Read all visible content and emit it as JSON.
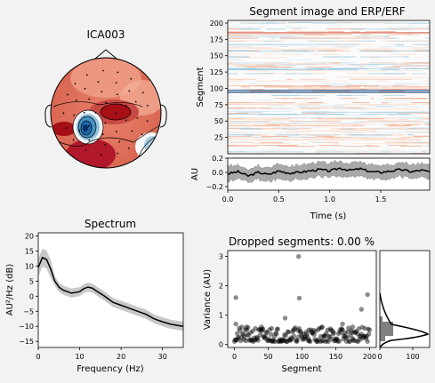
{
  "topomap": {
    "title": "ICA003",
    "colors": {
      "head": "#000000",
      "hot_dark": "#a50f15",
      "hot": "#d6604d",
      "neutral": "#f7f7f7",
      "cold": "#4393c3",
      "cold_dark": "#053061"
    }
  },
  "segment_image": {
    "title": "Segment image and ERP/ERF",
    "ylabel": "Segment",
    "yticks": [
      "200",
      "175",
      "150",
      "125",
      "100",
      "75",
      "50",
      "25"
    ]
  },
  "erp": {
    "ylabel": "AU",
    "xlabel": "Time (s)",
    "yticks": [
      "0.2",
      "0.0",
      "−0.2"
    ],
    "xticks": [
      "0.0",
      "0.5",
      "1.0",
      "1.5"
    ]
  },
  "spectrum": {
    "title": "Spectrum",
    "xlabel": "Frequency (Hz)",
    "ylabel": "AU²/Hz (dB)",
    "xticks": [
      "0",
      "10",
      "20",
      "30"
    ],
    "yticks": [
      "20",
      "15",
      "10",
      "5",
      "0",
      "−5",
      "−10",
      "−15"
    ]
  },
  "dropped": {
    "title": "Dropped segments: 0.00 %",
    "xlabel": "Segment",
    "ylabel": "Variance (AU)",
    "xticks": [
      "0",
      "50",
      "100",
      "150",
      "200"
    ],
    "yticks": [
      "3",
      "2",
      "1",
      "0"
    ],
    "hist_xticks": [
      "0",
      "100"
    ]
  },
  "chart_data": [
    {
      "type": "heatmap",
      "title": "Segment image and ERP/ERF",
      "ylabel": "Segment",
      "xlim": [
        0,
        1.98
      ],
      "ylim": [
        0,
        204
      ],
      "highlighted_rows": [
        95,
        98,
        186
      ]
    },
    {
      "type": "line",
      "xlabel": "Time (s)",
      "ylabel": "AU",
      "xlim": [
        0,
        1.98
      ],
      "ylim": [
        -0.25,
        0.2
      ],
      "x": [
        0.0,
        0.1,
        0.2,
        0.3,
        0.4,
        0.5,
        0.6,
        0.7,
        0.8,
        0.9,
        1.0,
        1.1,
        1.2,
        1.3,
        1.4,
        1.5,
        1.6,
        1.7,
        1.8,
        1.9,
        1.98
      ],
      "series": [
        {
          "values": [
            -0.02,
            0.01,
            -0.05,
            0.0,
            -0.03,
            0.02,
            -0.01,
            0.0,
            0.02,
            0.04,
            0.02,
            0.06,
            0.03,
            0.05,
            0.01,
            0.0,
            0.02,
            0.04,
            0.01,
            0.03,
            0.01
          ]
        }
      ],
      "band_halfwidth": 0.1
    },
    {
      "type": "line",
      "title": "Spectrum",
      "xlabel": "Frequency (Hz)",
      "ylabel": "AU²/Hz (dB)",
      "xlim": [
        0,
        35
      ],
      "ylim": [
        -17,
        21
      ],
      "x": [
        0,
        1,
        2,
        3,
        4,
        5,
        6,
        8,
        10,
        11,
        12,
        13,
        14,
        16,
        18,
        20,
        22,
        24,
        26,
        28,
        30,
        32,
        35
      ],
      "series": [
        {
          "values": [
            9.5,
            12.8,
            12.2,
            9.0,
            5.0,
            3.0,
            2.0,
            1.0,
            1.5,
            2.5,
            3.0,
            2.7,
            1.8,
            0.0,
            -2.0,
            -3.0,
            -4.0,
            -5.0,
            -6.0,
            -7.5,
            -8.5,
            -9.3,
            -10.0
          ]
        }
      ],
      "band_halfwidth": 1.5
    },
    {
      "type": "scatter",
      "title": "Dropped segments: 0.00 %",
      "xlabel": "Segment",
      "ylabel": "Variance (AU)",
      "xlim": [
        -10,
        210
      ],
      "ylim": [
        -0.1,
        3.2
      ],
      "points": [
        [
          2,
          1.6
        ],
        [
          2,
          0.7
        ],
        [
          75,
          0.9
        ],
        [
          95,
          3.0
        ],
        [
          96,
          1.58
        ],
        [
          188,
          1.2
        ],
        [
          197,
          1.7
        ],
        [
          40,
          0.6
        ],
        [
          130,
          0.6
        ],
        [
          160,
          0.7
        ],
        [
          18,
          0.5
        ],
        [
          55,
          0.55
        ],
        [
          110,
          0.5
        ],
        [
          175,
          0.6
        ],
        [
          200,
          0.5
        ]
      ],
      "bulk_range": [
        0.1,
        0.6
      ]
    }
  ]
}
